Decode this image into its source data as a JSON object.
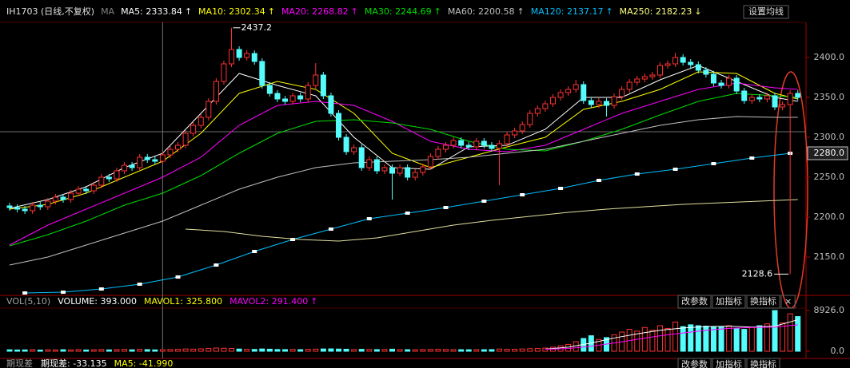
{
  "header": {
    "symbol": "IH1703 (日线,不复权)",
    "ma_label": "MA",
    "button": "设置均线"
  },
  "chart_data": [
    {
      "type": "candlestick",
      "legend": [
        {
          "text": "MA5: 2333.84",
          "arrow": "↑",
          "color": "#ffffff"
        },
        {
          "text": "MA10: 2302.34",
          "arrow": "↑",
          "color": "#ffff00"
        },
        {
          "text": "MA20: 2268.82",
          "arrow": "↑",
          "color": "#ff00ff"
        },
        {
          "text": "MA30: 2244.69",
          "arrow": "↑",
          "color": "#00e000"
        },
        {
          "text": "MA60: 2200.58",
          "arrow": "↑",
          "color": "#c0c0c0"
        },
        {
          "text": "MA120: 2137.17",
          "arrow": "↑",
          "color": "#00c0ff"
        },
        {
          "text": "MA250: 2182.23",
          "arrow": "↓",
          "color": "#ffff80"
        }
      ],
      "up_color": "#ff3232",
      "down_color": "#54fcfc",
      "open": [
        2214,
        2212,
        2210,
        2208,
        2215,
        2213,
        2220,
        2225,
        2222,
        2230,
        2235,
        2233,
        2240,
        2250,
        2248,
        2258,
        2265,
        2262,
        2275,
        2272,
        2270,
        2278,
        2285,
        2290,
        2305,
        2315,
        2325,
        2345,
        2370,
        2392,
        2410,
        2400,
        2405,
        2395,
        2365,
        2355,
        2348,
        2345,
        2352,
        2348,
        2365,
        2378,
        2352,
        2330,
        2300,
        2282,
        2287,
        2262,
        2272,
        2258,
        2262,
        2255,
        2262,
        2250,
        2256,
        2263,
        2276,
        2285,
        2290,
        2296,
        2290,
        2288,
        2295,
        2290,
        2286,
        2292,
        2303,
        2308,
        2316,
        2330,
        2336,
        2342,
        2350,
        2356,
        2360,
        2366,
        2346,
        2341,
        2345,
        2340,
        2351,
        2360,
        2369,
        2373,
        2376,
        2378,
        2390,
        2392,
        2400,
        2394,
        2391,
        2384,
        2379,
        2368,
        2365,
        2374,
        2358,
        2346,
        2350,
        2348,
        2352,
        2338,
        2341,
        2355
      ],
      "high": [
        2218,
        2216,
        2214,
        2219,
        2219,
        2224,
        2229,
        2229,
        2234,
        2239,
        2239,
        2244,
        2254,
        2254,
        2262,
        2269,
        2269,
        2279,
        2279,
        2276,
        2282,
        2289,
        2294,
        2309,
        2319,
        2329,
        2349,
        2374,
        2396,
        2437.2,
        2414,
        2409,
        2409,
        2399,
        2369,
        2359,
        2352,
        2356,
        2356,
        2369,
        2393,
        2382,
        2356,
        2334,
        2304,
        2291,
        2291,
        2276,
        2276,
        2266,
        2266,
        2266,
        2266,
        2260,
        2267,
        2280,
        2289,
        2294,
        2300,
        2300,
        2294,
        2299,
        2299,
        2294,
        2296,
        2307,
        2312,
        2320,
        2334,
        2340,
        2346,
        2354,
        2360,
        2364,
        2372,
        2370,
        2350,
        2349,
        2349,
        2355,
        2364,
        2373,
        2377,
        2380,
        2382,
        2394,
        2396,
        2406,
        2404,
        2398,
        2395,
        2388,
        2383,
        2372,
        2378,
        2378,
        2362,
        2354,
        2354,
        2356,
        2356,
        2345,
        2359,
        2359
      ],
      "low": [
        2208,
        2206,
        2204,
        2204,
        2209,
        2209,
        2216,
        2218,
        2218,
        2226,
        2229,
        2229,
        2236,
        2244,
        2244,
        2254,
        2258,
        2258,
        2268,
        2266,
        2266,
        2274,
        2281,
        2286,
        2301,
        2311,
        2321,
        2341,
        2366,
        2388,
        2396,
        2396,
        2391,
        2361,
        2351,
        2344,
        2341,
        2341,
        2344,
        2344,
        2361,
        2348,
        2326,
        2296,
        2278,
        2278,
        2258,
        2258,
        2254,
        2254,
        2222,
        2251,
        2246,
        2246,
        2252,
        2259,
        2272,
        2281,
        2286,
        2286,
        2284,
        2284,
        2286,
        2282,
        2240,
        2288,
        2299,
        2304,
        2312,
        2326,
        2332,
        2338,
        2346,
        2352,
        2356,
        2342,
        2337,
        2337,
        2326,
        2336,
        2347,
        2356,
        2365,
        2369,
        2372,
        2374,
        2386,
        2388,
        2390,
        2387,
        2380,
        2375,
        2364,
        2361,
        2361,
        2354,
        2342,
        2342,
        2344,
        2344,
        2334,
        2334,
        2128.6,
        2346
      ],
      "close": [
        2212,
        2210,
        2208,
        2215,
        2213,
        2220,
        2225,
        2222,
        2230,
        2235,
        2233,
        2240,
        2250,
        2248,
        2258,
        2265,
        2262,
        2275,
        2272,
        2270,
        2278,
        2285,
        2290,
        2305,
        2315,
        2325,
        2345,
        2370,
        2392,
        2410,
        2400,
        2405,
        2395,
        2365,
        2355,
        2348,
        2345,
        2352,
        2348,
        2365,
        2378,
        2352,
        2330,
        2300,
        2282,
        2287,
        2262,
        2272,
        2258,
        2262,
        2255,
        2262,
        2250,
        2256,
        2263,
        2276,
        2285,
        2290,
        2296,
        2290,
        2288,
        2295,
        2290,
        2286,
        2292,
        2303,
        2308,
        2316,
        2330,
        2336,
        2342,
        2350,
        2356,
        2360,
        2366,
        2346,
        2341,
        2345,
        2340,
        2351,
        2360,
        2369,
        2373,
        2376,
        2378,
        2390,
        2392,
        2400,
        2394,
        2391,
        2384,
        2379,
        2368,
        2365,
        2374,
        2358,
        2346,
        2350,
        2348,
        2352,
        2338,
        2341,
        2355,
        2350
      ],
      "lines": [
        {
          "color": "#ffffff",
          "x": [
            0,
            5,
            10,
            15,
            20,
            25,
            30,
            35,
            40,
            45,
            50,
            55,
            60,
            65,
            70,
            75,
            80,
            85,
            90,
            95,
            100,
            103
          ],
          "values": [
            2211,
            2222,
            2238,
            2262,
            2280,
            2330,
            2380,
            2365,
            2352,
            2300,
            2262,
            2260,
            2288,
            2290,
            2310,
            2350,
            2350,
            2372,
            2390,
            2370,
            2350,
            2345
          ]
        },
        {
          "color": "#ffff00",
          "x": [
            0,
            5,
            10,
            15,
            20,
            25,
            30,
            35,
            40,
            45,
            50,
            55,
            60,
            65,
            70,
            75,
            80,
            85,
            90,
            95,
            100,
            103
          ],
          "values": [
            2210,
            2216,
            2230,
            2250,
            2270,
            2305,
            2355,
            2370,
            2360,
            2330,
            2280,
            2262,
            2275,
            2288,
            2300,
            2335,
            2345,
            2360,
            2382,
            2380,
            2355,
            2348
          ]
        },
        {
          "color": "#ff00ff",
          "x": [
            0,
            5,
            10,
            15,
            20,
            25,
            30,
            35,
            40,
            45,
            50,
            55,
            60,
            65,
            70,
            75,
            80,
            85,
            90,
            95,
            100,
            103
          ],
          "values": [
            2165,
            2190,
            2210,
            2230,
            2250,
            2275,
            2315,
            2340,
            2345,
            2340,
            2320,
            2295,
            2285,
            2282,
            2290,
            2310,
            2330,
            2345,
            2360,
            2368,
            2362,
            2360
          ]
        },
        {
          "color": "#00e000",
          "x": [
            0,
            5,
            10,
            15,
            20,
            25,
            30,
            35,
            40,
            45,
            50,
            55,
            60,
            65,
            70,
            75,
            80,
            85,
            90,
            95,
            100,
            103
          ],
          "values": [
            2164,
            2178,
            2195,
            2215,
            2230,
            2252,
            2280,
            2305,
            2320,
            2322,
            2318,
            2310,
            2295,
            2285,
            2283,
            2295,
            2310,
            2328,
            2345,
            2355,
            2352,
            2350
          ]
        },
        {
          "color": "#c0c0c0",
          "x": [
            0,
            5,
            10,
            15,
            20,
            25,
            30,
            35,
            40,
            45,
            50,
            55,
            60,
            65,
            70,
            75,
            80,
            85,
            90,
            95,
            100,
            103
          ],
          "values": [
            2140,
            2150,
            2165,
            2180,
            2195,
            2215,
            2235,
            2250,
            2262,
            2268,
            2270,
            2272,
            2275,
            2280,
            2285,
            2295,
            2305,
            2315,
            2322,
            2326,
            2325,
            2325
          ]
        },
        {
          "color": "#00c0ff",
          "markers": true,
          "x": [
            2,
            7,
            12,
            17,
            22,
            27,
            32,
            37,
            42,
            47,
            52,
            57,
            62,
            67,
            72,
            77,
            82,
            87,
            92,
            97,
            102
          ],
          "values": [
            2105,
            2106,
            2110,
            2116,
            2125,
            2140,
            2157,
            2172,
            2185,
            2198,
            2205,
            2212,
            2220,
            2228,
            2236,
            2246,
            2254,
            2260,
            2267,
            2274,
            2280
          ]
        },
        {
          "color": "#e0e0a0",
          "x": [
            23,
            28,
            33,
            38,
            43,
            48,
            53,
            58,
            63,
            68,
            73,
            78,
            83,
            88,
            93,
            98,
            103
          ],
          "values": [
            2185,
            2182,
            2176,
            2172,
            2170,
            2174,
            2182,
            2190,
            2196,
            2201,
            2206,
            2210,
            2213,
            2216,
            2218,
            2220,
            2222
          ]
        }
      ],
      "xlim": [
        -0.73,
        103.76
      ],
      "ylim": [
        2104,
        2444
      ],
      "yticks": [
        {
          "value": 2150,
          "label": "2150.0"
        },
        {
          "value": 2200,
          "label": "2200.0"
        },
        {
          "value": 2250,
          "label": "2250.0"
        },
        {
          "value": 2300,
          "label": "2300.0"
        },
        {
          "value": 2350,
          "label": "2350.0"
        },
        {
          "value": 2400,
          "label": "2400.0"
        }
      ],
      "last_price": {
        "value": 2280,
        "label": "2280.0"
      },
      "cursor": {
        "x": 20,
        "y": 2307
      },
      "annotations": [
        {
          "x": 29,
          "value": 2437.2
        },
        {
          "x": 102,
          "value": 2128.6
        }
      ]
    },
    {
      "type": "bar",
      "legend": [
        {
          "text": "VOL(5,10)",
          "color": "#a0a0a0"
        },
        {
          "text": "VOLUME: 393.000",
          "color": "#ffffff"
        },
        {
          "text": "MAVOL1: 325.800",
          "color": "#ffff00"
        },
        {
          "text": "MAVOL2: 291.400",
          "arrow": "↑",
          "color": "#ff00ff"
        }
      ],
      "buttons": [
        "改参数",
        "加指标",
        "换指标",
        "×"
      ],
      "values": [
        320,
        280,
        300,
        350,
        260,
        310,
        290,
        340,
        300,
        360,
        280,
        330,
        380,
        300,
        350,
        400,
        320,
        420,
        360,
        300,
        340,
        380,
        420,
        500,
        460,
        520,
        600,
        700,
        650,
        620,
        480,
        420,
        400,
        500,
        450,
        380,
        360,
        400,
        350,
        420,
        460,
        500,
        520,
        480,
        440,
        380,
        420,
        400,
        360,
        380,
        450,
        360,
        340,
        330,
        360,
        400,
        420,
        380,
        360,
        340,
        330,
        350,
        340,
        360,
        480,
        420,
        440,
        500,
        560,
        600,
        700,
        900,
        1200,
        1500,
        2100,
        2800,
        3400,
        2600,
        3000,
        3600,
        4200,
        4800,
        4400,
        5200,
        4600,
        5600,
        5000,
        6400,
        5400,
        5800,
        5600,
        5500,
        5400,
        5300,
        5600,
        5000,
        4800,
        5200,
        5600,
        6000,
        8926,
        6200,
        8200,
        7600
      ],
      "lines": [
        {
          "color": "#ffffff",
          "x": [
            70,
            73,
            76,
            79,
            82,
            85,
            88,
            91,
            94,
            97,
            100,
            103
          ],
          "values": [
            450,
            900,
            1800,
            2900,
            3800,
            4600,
            5100,
            5400,
            5500,
            5300,
            5500,
            6900
          ]
        },
        {
          "color": "#ff00ff",
          "x": [
            70,
            73,
            76,
            79,
            82,
            85,
            88,
            91,
            94,
            97,
            100,
            103
          ],
          "values": [
            420,
            600,
            1100,
            1800,
            2600,
            3400,
            4000,
            4600,
            5000,
            5200,
            5300,
            5800
          ]
        }
      ],
      "ylim": [
        -1225,
        9451
      ],
      "yticks": [
        {
          "value": 0,
          "label": "0.0"
        },
        {
          "value": 8926,
          "label": "8926.0"
        }
      ]
    }
  ],
  "bottom_bar": {
    "title": "期现差",
    "items": [
      {
        "text": "期现差: -33.135",
        "color": "#ffffff"
      },
      {
        "text": "MA5: -41.990",
        "color": "#ffff00"
      }
    ],
    "buttons": [
      "改参数",
      "加指标",
      "换指标"
    ]
  }
}
